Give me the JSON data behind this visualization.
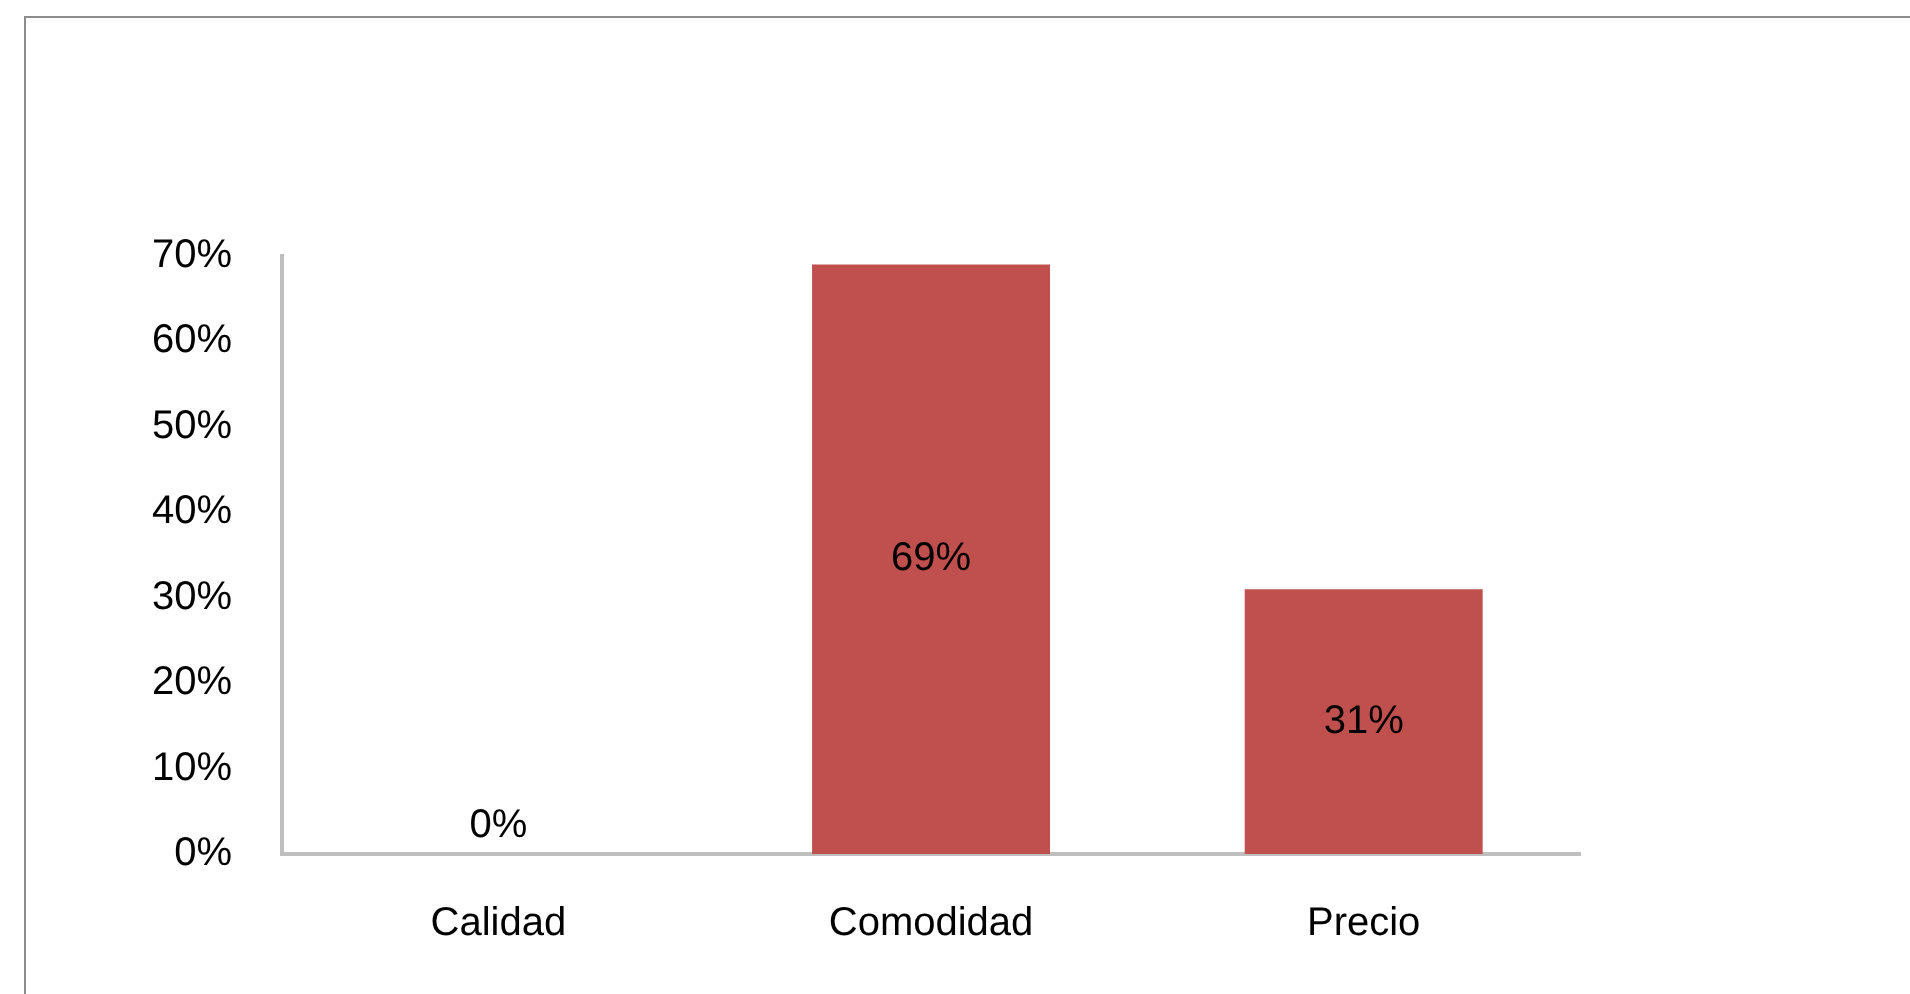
{
  "chart_data": {
    "type": "bar",
    "categories": [
      "Calidad",
      "Comodidad",
      "Precio"
    ],
    "values": [
      0,
      69,
      31
    ],
    "color": "#c0504d",
    "value_labels": [
      "0%",
      "69%",
      "31%"
    ],
    "ylim": [
      0,
      70
    ],
    "yticks": [
      {
        "value": 0,
        "label": "0%"
      },
      {
        "value": 10,
        "label": "10%"
      },
      {
        "value": 20,
        "label": "20%"
      },
      {
        "value": 30,
        "label": "30%"
      },
      {
        "value": 40,
        "label": "40%"
      },
      {
        "value": 50,
        "label": "50%"
      },
      {
        "value": 60,
        "label": "60%"
      },
      {
        "value": 70,
        "label": "70%"
      }
    ]
  }
}
